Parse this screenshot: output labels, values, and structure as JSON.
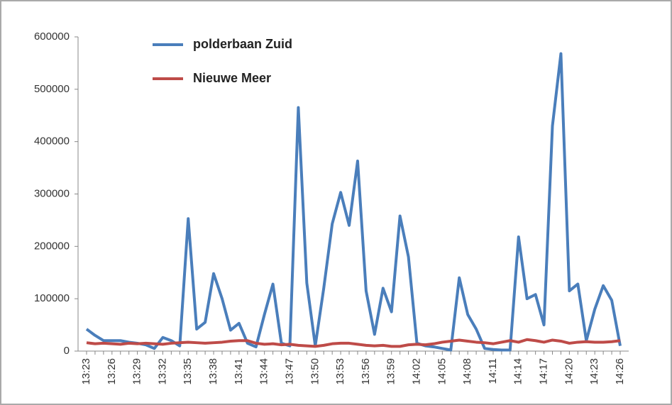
{
  "chart_data": {
    "type": "line",
    "categories": [
      "13:23",
      null,
      null,
      "13:26",
      null,
      null,
      "13:29",
      null,
      null,
      "13:32",
      null,
      null,
      "13:35",
      null,
      null,
      "13:38",
      null,
      null,
      "13:41",
      null,
      null,
      "13:44",
      null,
      null,
      "13:47",
      null,
      null,
      "13:50",
      null,
      null,
      "13:53",
      null,
      null,
      "13:56",
      null,
      null,
      "13:59",
      null,
      null,
      "14:02",
      null,
      null,
      "14:05",
      null,
      null,
      "14:08",
      null,
      null,
      "14:11",
      null,
      null,
      "14:14",
      null,
      null,
      "14:17",
      null,
      null,
      "14:20",
      null,
      null,
      "14:23",
      null,
      null,
      "14:26"
    ],
    "series": [
      {
        "name": "polderbaan Zuid",
        "color": "#4a7ebb",
        "values": [
          42000,
          30000,
          20000,
          20000,
          20000,
          17000,
          15000,
          12000,
          5000,
          26000,
          20000,
          10000,
          253000,
          42000,
          55000,
          148000,
          100000,
          40000,
          53000,
          15000,
          8000,
          70000,
          128000,
          15000,
          10000,
          465000,
          130000,
          10000,
          120000,
          243000,
          303000,
          240000,
          363000,
          115000,
          32000,
          120000,
          75000,
          258000,
          180000,
          15000,
          10000,
          8000,
          5000,
          2000,
          140000,
          70000,
          42000,
          5000,
          3000,
          2000,
          2000,
          218000,
          100000,
          108000,
          50000,
          430000,
          568000,
          115000,
          128000,
          20000,
          80000,
          125000,
          97000,
          10000
        ]
      },
      {
        "name": "Nieuwe Meer",
        "color": "#be4b48",
        "values": [
          16000,
          14000,
          15000,
          14000,
          13000,
          15000,
          14000,
          15000,
          14000,
          13000,
          15000,
          16000,
          17000,
          16000,
          15000,
          16000,
          17000,
          19000,
          20000,
          20000,
          15000,
          13000,
          14000,
          12000,
          13000,
          11000,
          10000,
          9000,
          11000,
          14000,
          15000,
          15000,
          13000,
          11000,
          10000,
          11000,
          9000,
          9000,
          12000,
          13000,
          12000,
          14000,
          17000,
          19000,
          21000,
          19000,
          17000,
          16000,
          14000,
          17000,
          20000,
          17000,
          22000,
          20000,
          17000,
          21000,
          19000,
          15000,
          17000,
          18000,
          17000,
          17000,
          18000,
          20000
        ]
      }
    ],
    "ylim": [
      0,
      600000
    ],
    "yticks": [
      0,
      100000,
      200000,
      300000,
      400000,
      500000,
      600000
    ],
    "grid": false
  }
}
